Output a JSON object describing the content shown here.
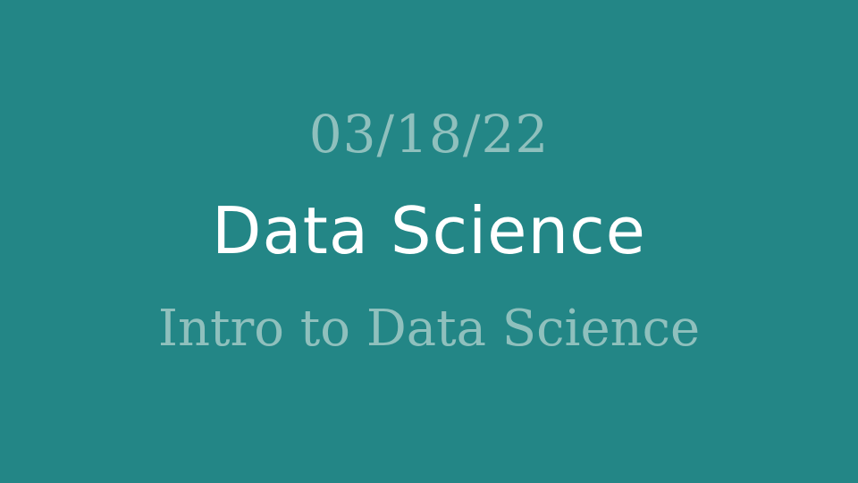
{
  "slide": {
    "date": "03/18/22",
    "title": "Data Science",
    "subtitle": "Intro to Data Science"
  },
  "colors": {
    "background": "#238686",
    "title": "#ffffff",
    "accent_text": "#8fc0bd"
  }
}
